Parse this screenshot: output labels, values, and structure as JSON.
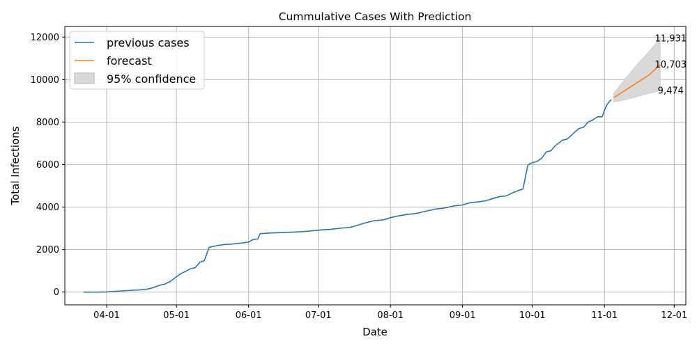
{
  "chart_data": {
    "type": "line",
    "title": "Cummulative Cases With Prediction",
    "xlabel": "Date",
    "ylabel": "Total Infections",
    "x_ticks": [
      "04-01",
      "05-01",
      "06-01",
      "07-01",
      "08-01",
      "09-01",
      "10-01",
      "11-01",
      "12-01"
    ],
    "y_ticks": [
      0,
      2000,
      4000,
      6000,
      8000,
      10000,
      12000
    ],
    "xlim": [
      "2020-03-14",
      "2020-12-06"
    ],
    "ylim": [
      -600,
      12500
    ],
    "grid": true,
    "legend_position": "top-left",
    "series": [
      {
        "name": "previous cases",
        "color": "#1f77b4",
        "x": [
          "2020-03-22",
          "2020-03-28",
          "2020-04-01",
          "2020-04-05",
          "2020-04-10",
          "2020-04-15",
          "2020-04-18",
          "2020-04-20",
          "2020-04-22",
          "2020-04-24",
          "2020-04-26",
          "2020-04-28",
          "2020-04-29",
          "2020-05-01",
          "2020-05-03",
          "2020-05-05",
          "2020-05-07",
          "2020-05-09",
          "2020-05-11",
          "2020-05-13",
          "2020-05-15",
          "2020-05-16",
          "2020-05-17",
          "2020-05-19",
          "2020-05-22",
          "2020-05-25",
          "2020-05-28",
          "2020-06-01",
          "2020-06-03",
          "2020-06-05",
          "2020-06-06",
          "2020-06-10",
          "2020-06-15",
          "2020-06-20",
          "2020-06-25",
          "2020-06-30",
          "2020-07-03",
          "2020-07-06",
          "2020-07-10",
          "2020-07-15",
          "2020-07-18",
          "2020-07-21",
          "2020-07-25",
          "2020-07-29",
          "2020-08-01",
          "2020-08-04",
          "2020-08-08",
          "2020-08-12",
          "2020-08-16",
          "2020-08-20",
          "2020-08-24",
          "2020-08-28",
          "2020-09-01",
          "2020-09-04",
          "2020-09-08",
          "2020-09-11",
          "2020-09-14",
          "2020-09-17",
          "2020-09-20",
          "2020-09-23",
          "2020-09-25",
          "2020-09-27",
          "2020-09-29",
          "2020-09-30",
          "2020-10-03",
          "2020-10-05",
          "2020-10-07",
          "2020-10-09",
          "2020-10-11",
          "2020-10-14",
          "2020-10-16",
          "2020-10-19",
          "2020-10-21",
          "2020-10-23",
          "2020-10-25",
          "2020-10-27",
          "2020-10-29",
          "2020-10-31",
          "2020-11-01",
          "2020-11-02",
          "2020-11-03",
          "2020-11-04"
        ],
        "y": [
          0,
          0,
          10,
          40,
          70,
          100,
          130,
          180,
          250,
          330,
          380,
          480,
          560,
          720,
          880,
          980,
          1100,
          1150,
          1400,
          1480,
          2100,
          2130,
          2150,
          2200,
          2240,
          2260,
          2300,
          2350,
          2480,
          2500,
          2750,
          2780,
          2800,
          2820,
          2850,
          2900,
          2930,
          2950,
          3000,
          3050,
          3150,
          3250,
          3360,
          3400,
          3500,
          3580,
          3650,
          3700,
          3800,
          3900,
          3950,
          4050,
          4100,
          4200,
          4250,
          4300,
          4400,
          4500,
          4530,
          4700,
          4780,
          4850,
          5950,
          6050,
          6150,
          6300,
          6600,
          6650,
          6900,
          7150,
          7200,
          7500,
          7700,
          7750,
          8000,
          8100,
          8250,
          8250,
          8550,
          8800,
          8950,
          9050
        ]
      },
      {
        "name": "forecast",
        "color": "#ff7f0e",
        "x": [
          "2020-11-05",
          "2020-11-10",
          "2020-11-15",
          "2020-11-20",
          "2020-11-25"
        ],
        "y": [
          9150,
          9500,
          9850,
          10200,
          10703
        ]
      }
    ],
    "confidence_band": {
      "name": "95% confidence",
      "color": "#d9d9d9",
      "x": [
        "2020-11-05",
        "2020-11-10",
        "2020-11-15",
        "2020-11-20",
        "2020-11-25"
      ],
      "upper": [
        9350,
        10050,
        10700,
        11300,
        11931
      ],
      "lower": [
        8950,
        9050,
        9200,
        9350,
        9474
      ]
    },
    "annotations": [
      {
        "text": "11,931",
        "x": "2020-11-25",
        "y": 11931
      },
      {
        "text": "10,703",
        "x": "2020-11-25",
        "y": 10703
      },
      {
        "text": "9,474",
        "x": "2020-11-25",
        "y": 9474
      }
    ]
  }
}
